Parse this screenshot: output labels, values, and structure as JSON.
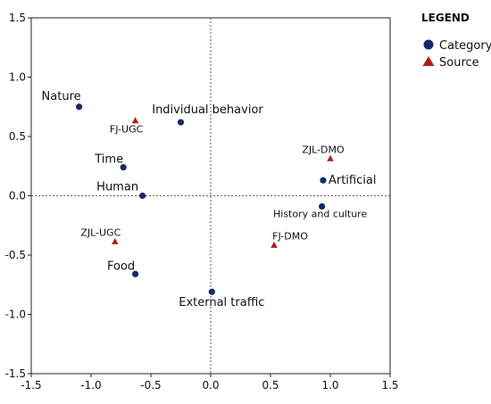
{
  "chart_data": {
    "type": "scatter",
    "xlim": [
      -1.5,
      1.5
    ],
    "ylim": [
      -1.5,
      1.5
    ],
    "x_ticks": [
      "-1.5",
      "-1.0",
      "-0.5",
      "0.0",
      "0.5",
      "1.0",
      "1.5"
    ],
    "y_ticks": [
      "1.5",
      "1.0",
      "0.5",
      "0.0",
      "-0.5",
      "-1.0",
      "-1.5"
    ],
    "grid": false,
    "reference_lines": {
      "x": 0,
      "y": 0,
      "style": "dotted"
    },
    "legend": {
      "title": "LEGEND",
      "placement": "right",
      "entries": [
        {
          "label": "Category",
          "marker": "circle",
          "color": "#16286e"
        },
        {
          "label": "Source",
          "marker": "triangle",
          "color": "#b01d1d"
        }
      ]
    },
    "series": [
      {
        "name": "Category",
        "marker": "circle",
        "color": "#16286e",
        "points": [
          {
            "label": "Nature",
            "x": -1.1,
            "y": 0.75
          },
          {
            "label": "Individual behavior",
            "x": -0.25,
            "y": 0.62
          },
          {
            "label": "Time",
            "x": -0.73,
            "y": 0.24
          },
          {
            "label": "Human",
            "x": -0.57,
            "y": 0.0
          },
          {
            "label": "Artificial",
            "x": 0.94,
            "y": 0.13
          },
          {
            "label": "History and culture",
            "x": 0.93,
            "y": -0.09
          },
          {
            "label": "Food",
            "x": -0.63,
            "y": -0.66
          },
          {
            "label": "External traffic",
            "x": 0.01,
            "y": -0.81
          }
        ]
      },
      {
        "name": "Source",
        "marker": "triangle",
        "color": "#b01d1d",
        "points": [
          {
            "label": "FJ-UGC",
            "x": -0.63,
            "y": 0.63
          },
          {
            "label": "ZJL-DMO",
            "x": 1.0,
            "y": 0.31
          },
          {
            "label": "ZJL-UGC",
            "x": -0.8,
            "y": -0.39
          },
          {
            "label": "FJ-DMO",
            "x": 0.53,
            "y": -0.42
          }
        ]
      }
    ]
  }
}
